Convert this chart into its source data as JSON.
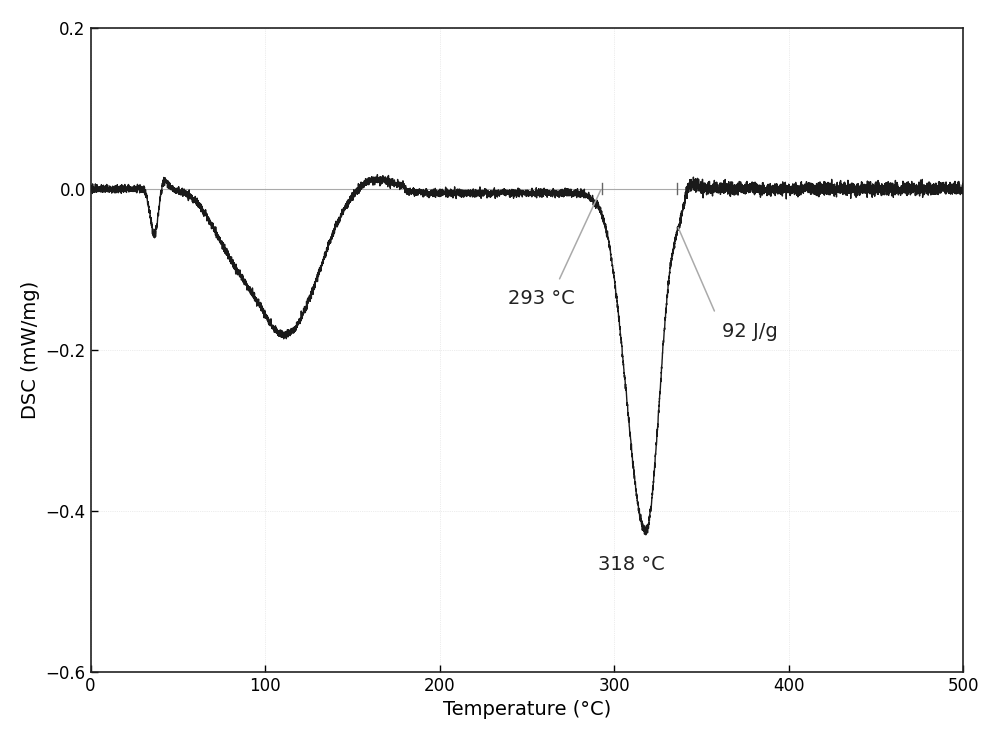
{
  "title": "",
  "xlabel": "Temperature (°C)",
  "ylabel": "DSC (mW/mg)",
  "xlim": [
    0,
    500
  ],
  "ylim": [
    -0.6,
    0.2
  ],
  "yticks": [
    -0.6,
    -0.4,
    -0.2,
    0.0,
    0.2
  ],
  "xticks": [
    0,
    100,
    200,
    300,
    400,
    500
  ],
  "line_color": "#1a1a1a",
  "baseline_color": "#aaaaaa",
  "annotation_line_color": "#aaaaaa",
  "annotation_293_text": "293 °C",
  "annotation_318_text": "318 °C",
  "annotation_92_text": "92 J/g",
  "background_color": "#ffffff",
  "fig_background": "#ffffff",
  "grid_color": "#cccccc",
  "font_size": 14,
  "axis_font_size": 14
}
